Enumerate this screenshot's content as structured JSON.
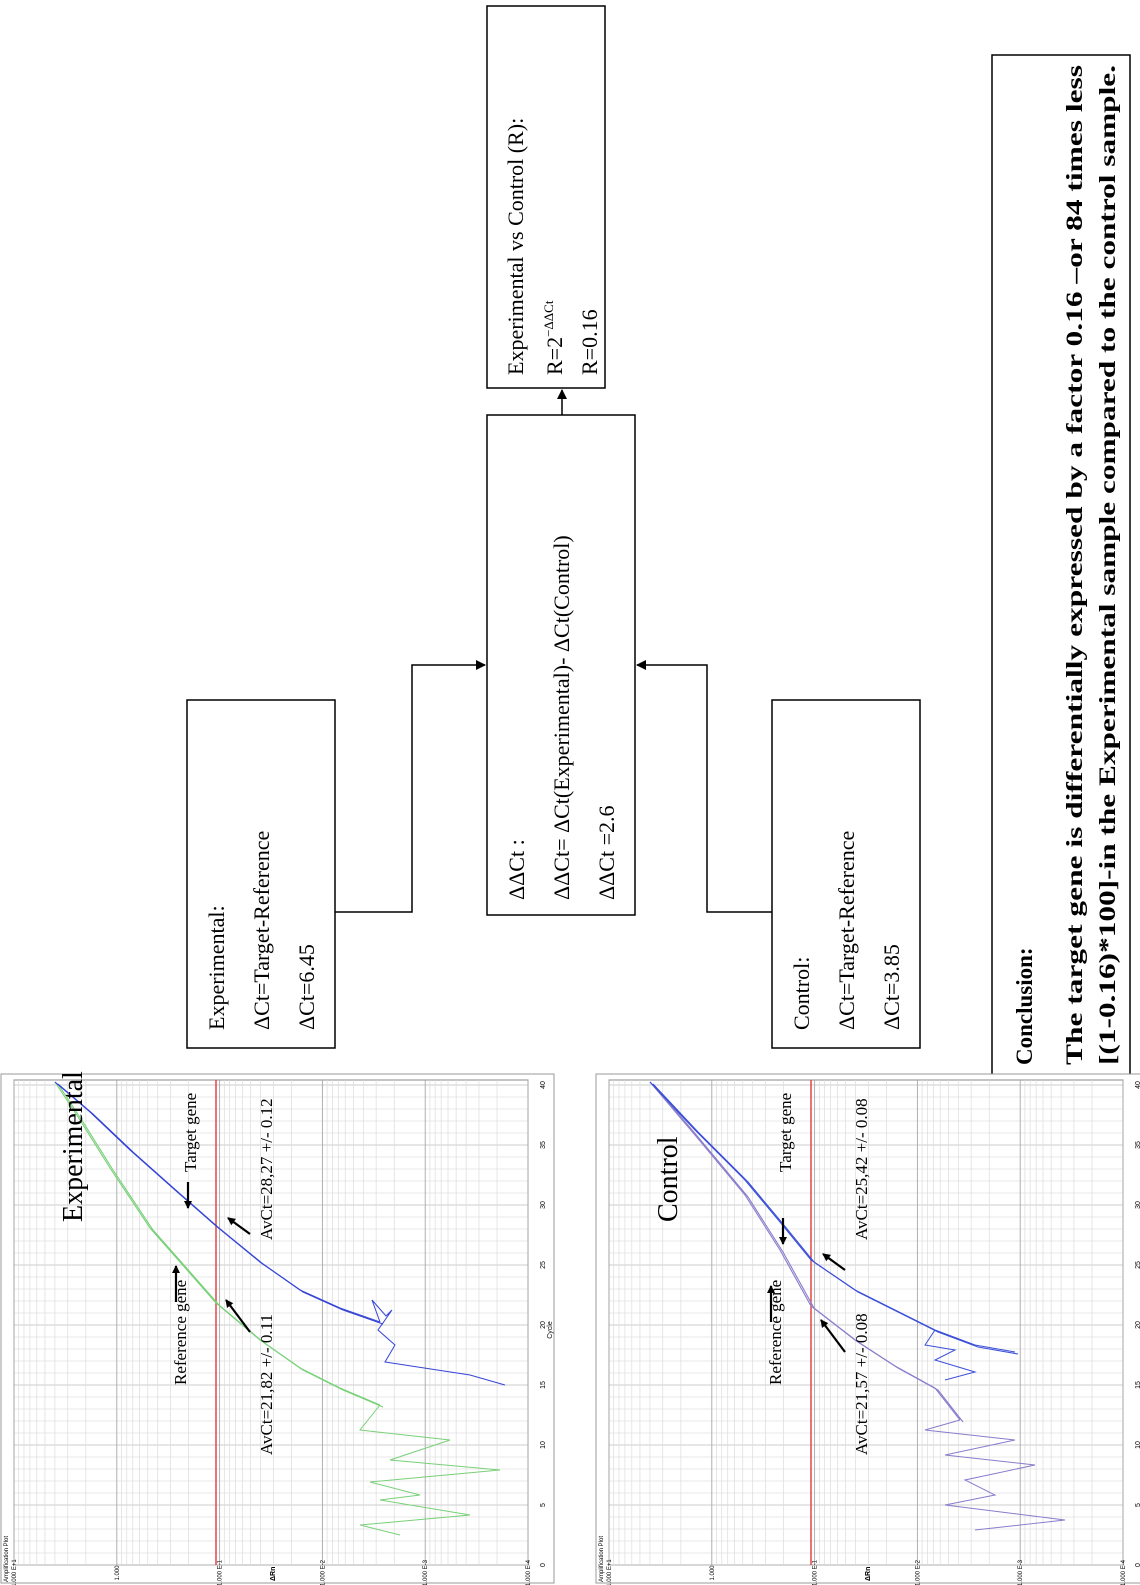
{
  "plots": [
    {
      "label": "Experimental",
      "target_label": "Target gene",
      "reference_label": "Reference gene",
      "target_ct": "AvCt=28,27 +/- 0.12",
      "reference_ct": "AvCt=21,82 +/- 0.11"
    },
    {
      "label": "Control",
      "target_label": "Target gene",
      "reference_label": "Reference gene",
      "target_ct": "AvCt=25,42 +/- 0.08",
      "reference_ct": "AvCt=21,57 +/- 0.08"
    }
  ],
  "plot_axes": {
    "title": "Amplification Plot",
    "x_label": "Cycle",
    "y_label": "ΔRn",
    "x_ticks": [
      "0",
      "5",
      "10",
      "15",
      "20",
      "25",
      "30",
      "35",
      "40"
    ],
    "y_ticks": [
      "1.000 E+1",
      "1.000",
      "1.000 E-1",
      "1.000 E-2",
      "1.000 E-3",
      "1.000 E-4"
    ]
  },
  "boxes": {
    "experimental": {
      "lines": [
        "Experimental:",
        "ΔCt=Target-Reference",
        "ΔCt=6.45"
      ]
    },
    "control": {
      "lines": [
        "Control:",
        "ΔCt=Target-Reference",
        "ΔCt=3.85"
      ]
    },
    "delta_delta": {
      "lines": [
        "ΔΔCt :",
        "ΔΔCt= ΔCt(Experimental)- ΔCt(Control)",
        "ΔΔCt =2.6"
      ]
    }
  },
  "result": {
    "title": "Experimental vs Control (R):",
    "formula": {
      "base": "R=2",
      "exponent": "−ΔΔCt"
    },
    "value": "R=0.16"
  },
  "conclusion": {
    "title": "Conclusion:",
    "lines": [
      "The target gene is differentially expressed by a factor 0.16 –or 84 times less",
      "[(1-0.16)*100]-in the Experimental sample compared to the control sample."
    ]
  }
}
